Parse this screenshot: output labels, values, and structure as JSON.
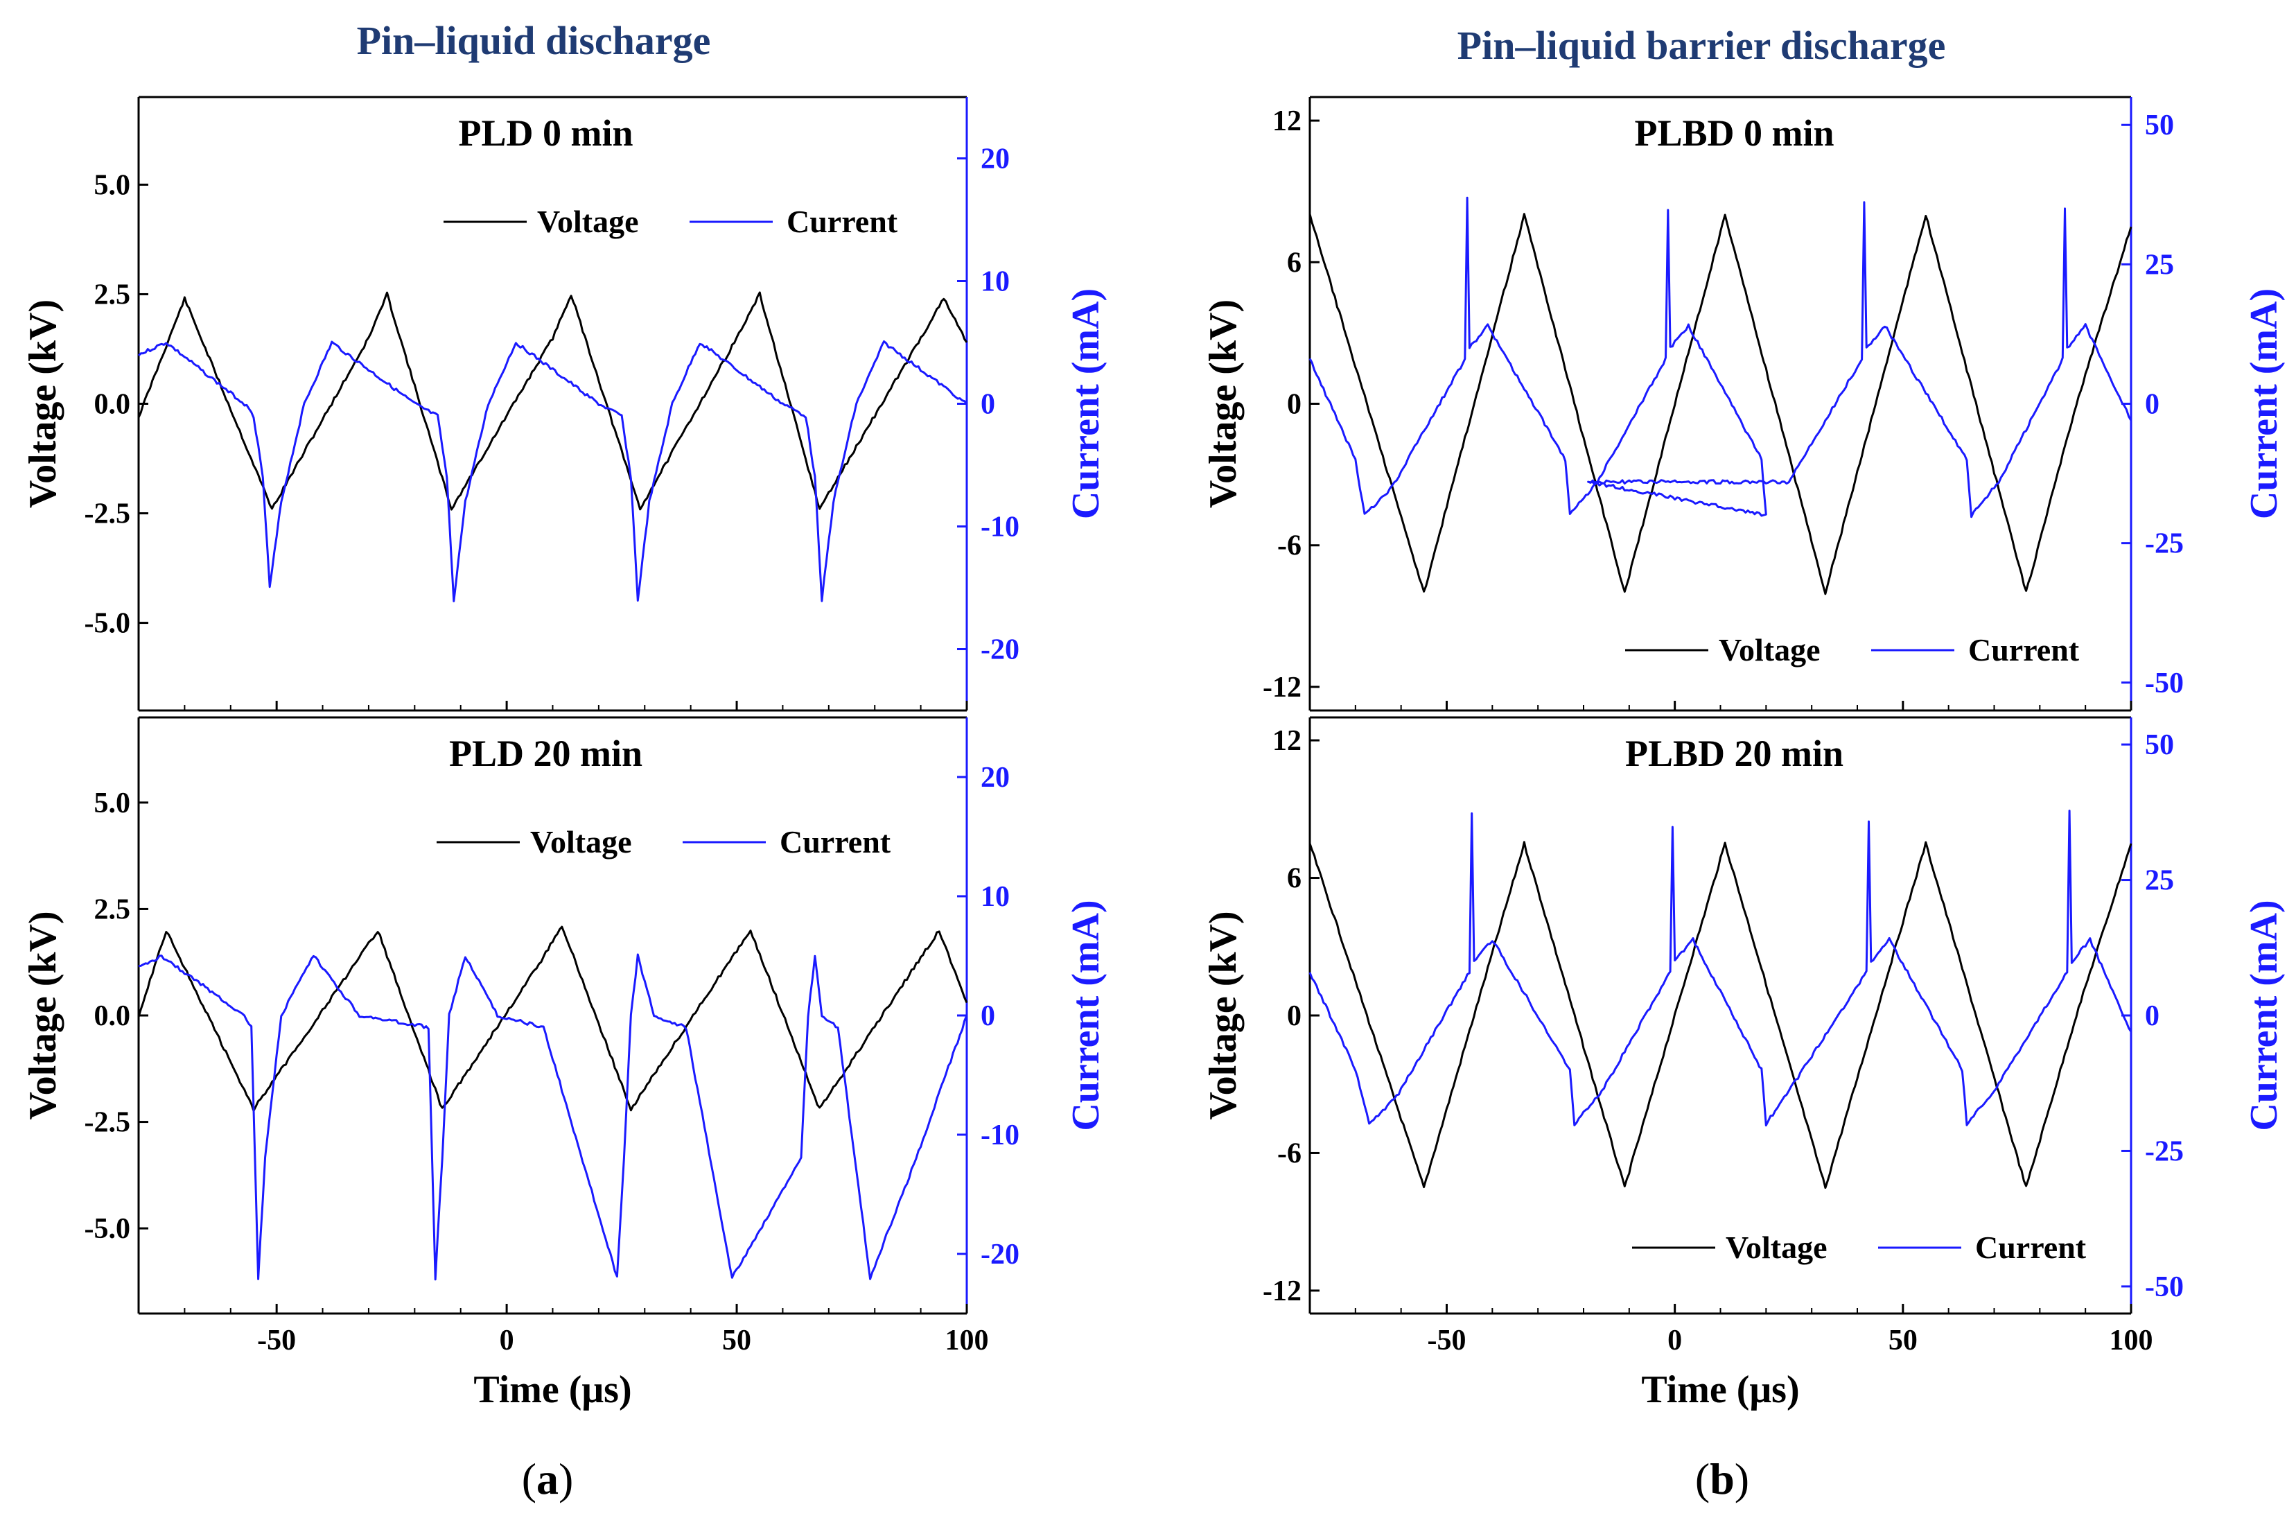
{
  "columns": [
    {
      "title": "Pin–liquid discharge",
      "label_open": "(",
      "label_letter": "a",
      "label_close": ")"
    },
    {
      "title": "Pin–liquid barrier discharge",
      "label_open": "(",
      "label_letter": "b",
      "label_close": ")"
    }
  ],
  "colors": {
    "voltage": "#000000",
    "current": "#1a1aff",
    "axis": "#000000"
  },
  "chart_data": [
    {
      "type": "line",
      "title": "PLD 0 min",
      "xlabel": "Time (μs)",
      "ylabel": "Voltage (kV)",
      "y2label": "Current (mA)",
      "xlim": [
        -80,
        100
      ],
      "ylim": [
        -7,
        7
      ],
      "y2lim": [
        -25,
        25
      ],
      "xticks": [
        -50,
        0,
        50,
        100
      ],
      "yticks": [
        -5.0,
        -2.5,
        0.0,
        2.5,
        5.0
      ],
      "y2ticks": [
        -20,
        -10,
        0,
        10,
        20
      ],
      "xticklabels": [
        "-50",
        "0",
        "50",
        "100"
      ],
      "yticklabels": [
        "-5.0",
        "-2.5",
        "0.0",
        "2.5",
        "5.0"
      ],
      "y2ticklabels": [
        "-20",
        "-10",
        "0",
        "10",
        "20"
      ],
      "legend": [
        "Voltage",
        "Current"
      ],
      "legend_position": "top-right",
      "series": [
        {
          "name": "Voltage",
          "axis": "left",
          "x": [
            -80,
            -70,
            -51,
            -30,
            -26,
            -12,
            10,
            14,
            29,
            50,
            55,
            68,
            90,
            95,
            100
          ],
          "y": [
            -0.3,
            2.4,
            -2.4,
            1.5,
            2.5,
            -2.4,
            1.5,
            2.5,
            -2.4,
            1.5,
            2.5,
            -2.4,
            1.5,
            2.4,
            1.4
          ]
        },
        {
          "name": "Current",
          "axis": "right",
          "x": [
            -80,
            -74,
            -57,
            -55,
            -53,
            -51.5,
            -49,
            -44,
            -38,
            -20,
            -15,
            -13,
            -11.5,
            -9,
            -4,
            2,
            20,
            25,
            27,
            28.5,
            31,
            36,
            42,
            60,
            65,
            67,
            68.5,
            71,
            76,
            82,
            100
          ],
          "y": [
            4,
            5,
            0,
            -1,
            -6,
            -15,
            -8,
            0,
            5,
            0,
            -1,
            -6,
            -16,
            -8,
            0,
            5,
            0,
            -1,
            -6,
            -16,
            -8,
            0,
            5,
            0,
            -1,
            -6,
            -16,
            -8,
            0,
            5,
            0
          ]
        }
      ]
    },
    {
      "type": "line",
      "title": "PLD 20 min",
      "xlabel": "Time (μs)",
      "ylabel": "Voltage (kV)",
      "y2label": "Current (mA)",
      "xlim": [
        -80,
        100
      ],
      "ylim": [
        -7,
        7
      ],
      "y2lim": [
        -25,
        25
      ],
      "xticks": [
        -50,
        0,
        50,
        100
      ],
      "yticks": [
        -5.0,
        -2.5,
        0.0,
        2.5,
        5.0
      ],
      "y2ticks": [
        -20,
        -10,
        0,
        10,
        20
      ],
      "xticklabels": [
        "-50",
        "0",
        "50",
        "100"
      ],
      "yticklabels": [
        "-5.0",
        "-2.5",
        "0.0",
        "2.5",
        "5.0"
      ],
      "y2ticklabels": [
        "-20",
        "-10",
        "0",
        "10",
        "20"
      ],
      "legend": [
        "Voltage",
        "Current"
      ],
      "legend_position": "top-right",
      "series": [
        {
          "name": "Voltage",
          "axis": "left",
          "x": [
            -80,
            -74,
            -55,
            -33,
            -28,
            -14,
            7,
            12,
            27,
            48,
            53,
            68,
            89,
            94,
            100
          ],
          "y": [
            0.0,
            2.0,
            -2.2,
            1.2,
            2.0,
            -2.2,
            1.2,
            2.1,
            -2.2,
            1.2,
            2.0,
            -2.2,
            1.2,
            2.0,
            0.3
          ]
        },
        {
          "name": "Current",
          "axis": "right",
          "x": [
            -80,
            -75,
            -57,
            -55.5,
            -54,
            -52.5,
            -49,
            -42,
            -32,
            -17,
            -15.5,
            -14,
            -12.5,
            -9,
            -2,
            8,
            24,
            25.5,
            27,
            28.5,
            32,
            39,
            49,
            64,
            65.5,
            67,
            68.5,
            72,
            79,
            89,
            100
          ],
          "y": [
            4,
            5,
            0,
            -1,
            -22,
            -12,
            0,
            5,
            0,
            -1,
            -22,
            -12,
            0,
            5,
            0,
            -1,
            -22,
            -12,
            0,
            5,
            0,
            -1,
            -22,
            -12,
            0,
            5,
            0,
            -1,
            -22,
            -12,
            0
          ]
        }
      ]
    },
    {
      "type": "line",
      "title": "PLBD 0 min",
      "xlabel": "Time (μs)",
      "ylabel": "Voltage (kV)",
      "y2label": "Current (mA)",
      "xlim": [
        -80,
        100
      ],
      "ylim": [
        -13,
        13
      ],
      "y2lim": [
        -55,
        55
      ],
      "xticks": [
        -50,
        0,
        50,
        100
      ],
      "yticks": [
        -12,
        -6,
        0,
        6,
        12
      ],
      "y2ticks": [
        -50,
        -25,
        0,
        25,
        50
      ],
      "xticklabels": [
        "-50",
        "0",
        "50",
        "100"
      ],
      "yticklabels": [
        "-12",
        "-6",
        "0",
        "6",
        "12"
      ],
      "y2ticklabels": [
        "-50",
        "-25",
        "0",
        "25",
        "50"
      ],
      "legend": [
        "Voltage",
        "Current"
      ],
      "legend_position": "bottom-right",
      "series": [
        {
          "name": "Voltage",
          "axis": "left",
          "x": [
            -80,
            -67.5,
            -55,
            -44,
            -33,
            -22,
            -11,
            0,
            11,
            22,
            33,
            44,
            55,
            66,
            77,
            88,
            100
          ],
          "y": [
            8.0,
            0.0,
            -8.0,
            0.0,
            8.0,
            0.0,
            -8.0,
            0.0,
            8.0,
            0.0,
            -8.0,
            0.0,
            8.0,
            0.0,
            -8.0,
            0.0,
            7.5
          ]
        },
        {
          "name": "Current",
          "axis": "right",
          "x": [
            -80,
            -70,
            -68,
            -62,
            -46,
            -45.5,
            -45,
            -41,
            -24,
            -23,
            -17,
            -2,
            -1.5,
            -1,
            3,
            19,
            20,
            -19,
            25,
            41,
            41.5,
            42,
            46,
            64,
            65,
            71,
            85,
            85.5,
            86,
            90,
            100
          ],
          "y": [
            8,
            -10,
            -20,
            -15,
            8,
            37,
            10,
            14,
            -10,
            -20,
            -14,
            8,
            35,
            10,
            14,
            -10,
            -20,
            -14,
            -14,
            8,
            36,
            10,
            14,
            -10,
            -20,
            -14,
            8,
            35,
            10,
            14,
            -3
          ]
        }
      ]
    },
    {
      "type": "line",
      "title": "PLBD 20 min",
      "xlabel": "Time (μs)",
      "ylabel": "Voltage (kV)",
      "y2label": "Current (mA)",
      "xlim": [
        -80,
        100
      ],
      "ylim": [
        -13,
        13
      ],
      "y2lim": [
        -55,
        55
      ],
      "xticks": [
        -50,
        0,
        50,
        100
      ],
      "yticks": [
        -12,
        -6,
        0,
        6,
        12
      ],
      "y2ticks": [
        -50,
        -25,
        0,
        25,
        50
      ],
      "xticklabels": [
        "-50",
        "0",
        "50",
        "100"
      ],
      "yticklabels": [
        "-12",
        "-6",
        "0",
        "6",
        "12"
      ],
      "y2ticklabels": [
        "-50",
        "-25",
        "0",
        "25",
        "50"
      ],
      "legend": [
        "Voltage",
        "Current"
      ],
      "legend_position": "bottom-right",
      "series": [
        {
          "name": "Voltage",
          "axis": "left",
          "x": [
            -80,
            -67.5,
            -55,
            -44,
            -33,
            -22,
            -11,
            0,
            11,
            22,
            33,
            44,
            55,
            66,
            77,
            88,
            100
          ],
          "y": [
            7.5,
            0.0,
            -7.5,
            0.0,
            7.5,
            0.0,
            -7.5,
            0.0,
            7.5,
            0.0,
            -7.5,
            0.0,
            7.5,
            0.0,
            -7.5,
            0.0,
            7.5
          ]
        },
        {
          "name": "Current",
          "axis": "right",
          "x": [
            -80,
            -70,
            -67,
            -61,
            -45,
            -44.5,
            -44,
            -40,
            -23,
            -22,
            -16,
            -1,
            -0.5,
            0,
            4,
            19,
            20,
            25,
            42,
            42.5,
            43,
            47,
            63,
            64,
            70,
            86,
            86.5,
            87,
            91,
            100
          ],
          "y": [
            8,
            -10,
            -20,
            -15,
            8,
            37,
            10,
            14,
            -10,
            -20,
            -14,
            8,
            35,
            10,
            14,
            -10,
            -20,
            -14,
            8,
            36,
            10,
            14,
            -10,
            -20,
            -14,
            8,
            38,
            10,
            14,
            -3
          ]
        }
      ]
    }
  ]
}
